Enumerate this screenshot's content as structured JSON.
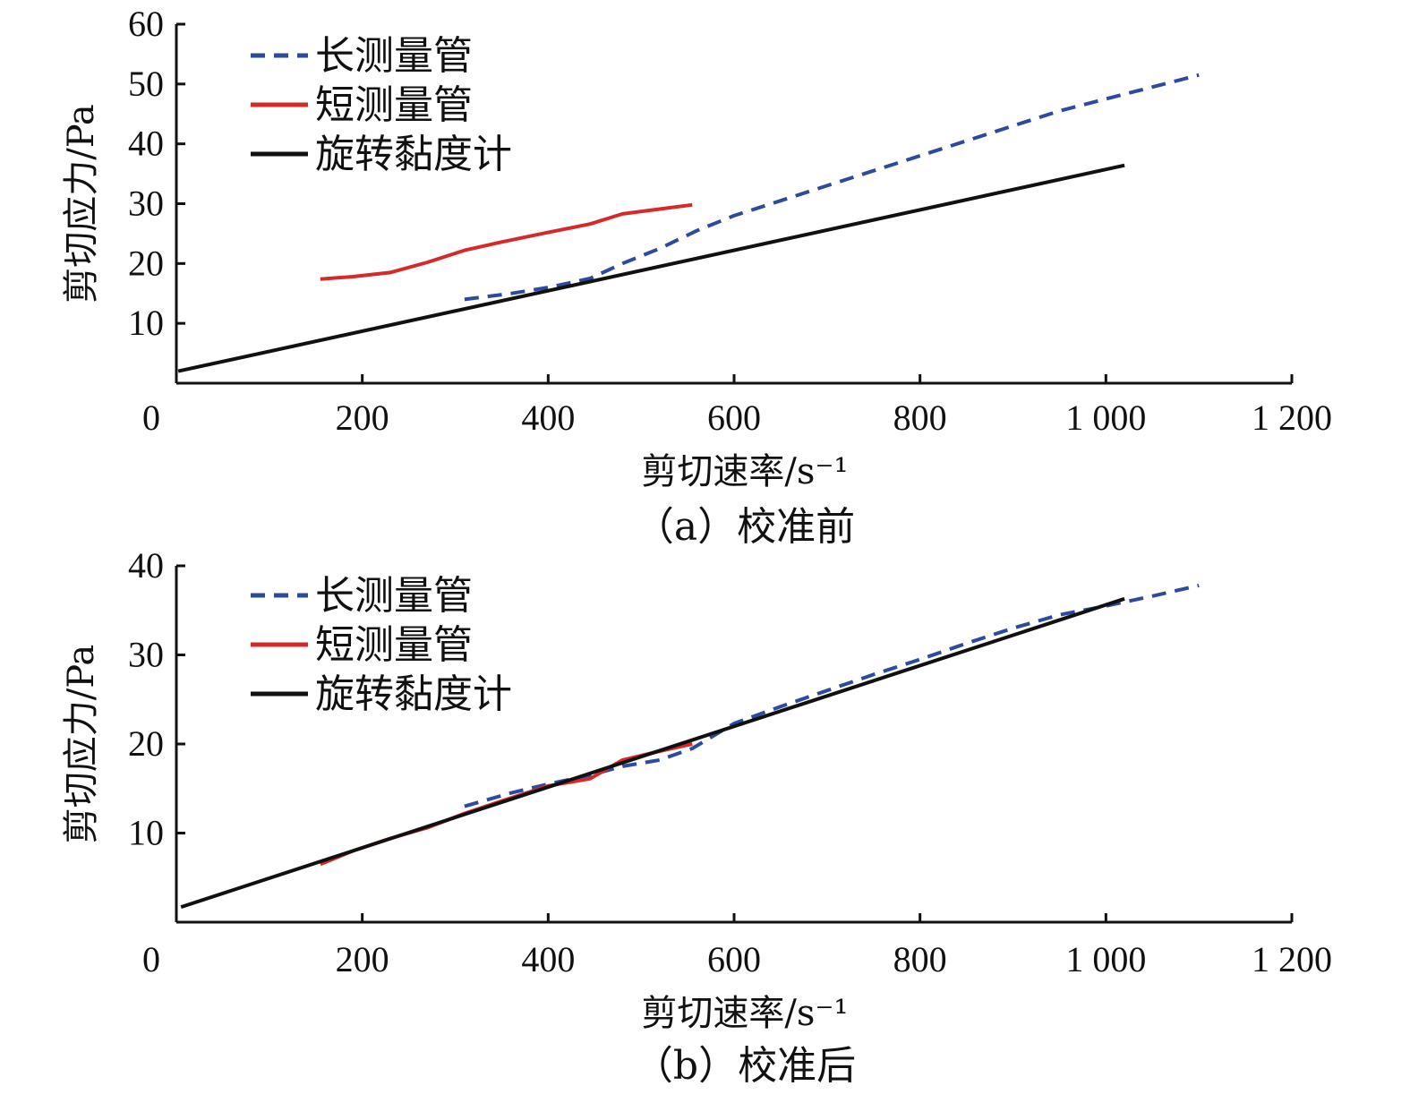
{
  "chart_data": [
    {
      "type": "line",
      "caption": "（a）校准前",
      "xlabel": "剪切速率/s⁻¹",
      "ylabel": "剪切应力/Pa",
      "xlim": [
        0,
        1200
      ],
      "ylim": [
        0,
        60
      ],
      "xticks": [
        0,
        200,
        400,
        600,
        800,
        1000,
        1200
      ],
      "xtick_labels": [
        "0",
        "200",
        "400",
        "600",
        "800",
        "1 000",
        "1 200"
      ],
      "yticks": [
        10,
        20,
        30,
        40,
        50,
        60
      ],
      "ytick_labels": [
        "10",
        "20",
        "30",
        "40",
        "50",
        "60"
      ],
      "legend_position": "top-left",
      "series": [
        {
          "name": "长测量管",
          "color": "#2e4a9e",
          "style": "dashed",
          "x": [
            310,
            360,
            400,
            445,
            480,
            520,
            560,
            600,
            650,
            700,
            750,
            800,
            850,
            900,
            950,
            1000,
            1050,
            1100
          ],
          "y": [
            14,
            15,
            16,
            17.5,
            20,
            22.5,
            25.5,
            28,
            30.5,
            33,
            35.5,
            38,
            40.5,
            43,
            45.5,
            47.5,
            49.5,
            51.5
          ]
        },
        {
          "name": "短测量管",
          "color": "#d62a2a",
          "style": "solid",
          "x": [
            155,
            190,
            230,
            270,
            310,
            350,
            400,
            445,
            480,
            520,
            555
          ],
          "y": [
            17.4,
            17.8,
            18.5,
            20.2,
            22.2,
            23.6,
            25.2,
            26.6,
            28.3,
            29.1,
            29.8
          ]
        },
        {
          "name": "旋转黏度计",
          "color": "#111111",
          "style": "solid",
          "x": [
            2,
            1020
          ],
          "y": [
            2.0,
            36.4
          ]
        }
      ]
    },
    {
      "type": "line",
      "caption": "（b）校准后",
      "xlabel": "剪切速率/s⁻¹",
      "ylabel": "剪切应力/Pa",
      "xlim": [
        0,
        1200
      ],
      "ylim": [
        0,
        40
      ],
      "xticks": [
        0,
        200,
        400,
        600,
        800,
        1000,
        1200
      ],
      "xtick_labels": [
        "0",
        "200",
        "400",
        "600",
        "800",
        "1 000",
        "1 200"
      ],
      "yticks": [
        10,
        20,
        30,
        40
      ],
      "ytick_labels": [
        "10",
        "20",
        "30",
        "40"
      ],
      "legend_position": "top-left",
      "series": [
        {
          "name": "长测量管",
          "color": "#2e4a9e",
          "style": "dashed",
          "x": [
            310,
            360,
            400,
            445,
            480,
            520,
            555,
            600,
            650,
            700,
            750,
            800,
            850,
            900,
            950,
            1000,
            1050,
            1100
          ],
          "y": [
            13,
            14.5,
            15.5,
            16.5,
            17.5,
            18.2,
            19.5,
            22.3,
            24.2,
            26,
            27.8,
            29.5,
            31.3,
            33,
            34.5,
            35.5,
            36.6,
            37.8
          ]
        },
        {
          "name": "短测量管",
          "color": "#d62a2a",
          "style": "solid",
          "x": [
            155,
            190,
            230,
            270,
            310,
            350,
            400,
            445,
            480,
            520,
            555
          ],
          "y": [
            6.5,
            8.0,
            9.4,
            10.6,
            12.2,
            13.6,
            15.3,
            16.1,
            18.2,
            19.2,
            20.0
          ]
        },
        {
          "name": "旋转黏度计",
          "color": "#111111",
          "style": "solid",
          "x": [
            5,
            1020
          ],
          "y": [
            1.7,
            36.3
          ]
        }
      ]
    }
  ]
}
